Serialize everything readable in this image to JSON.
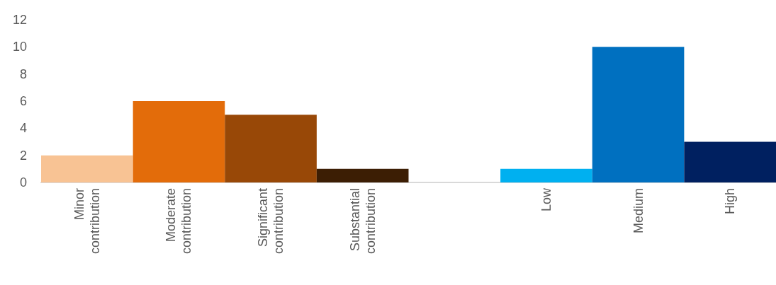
{
  "chart_data": {
    "type": "bar",
    "categories": [
      "Minor contribution",
      "Moderate contribution",
      "Significant contribution",
      "Substantial contribution",
      null,
      "Low",
      "Medium",
      "High"
    ],
    "values": [
      2,
      6,
      5,
      1,
      null,
      1,
      10,
      3
    ],
    "colors": [
      "#f8c394",
      "#e36c0a",
      "#984807",
      "#3c1e04",
      "#ffffff",
      "#00b0f0",
      "#0070c0",
      "#002060"
    ],
    "ylim": [
      0,
      12
    ],
    "yticks": [
      0,
      2,
      4,
      6,
      8,
      10,
      12
    ]
  }
}
